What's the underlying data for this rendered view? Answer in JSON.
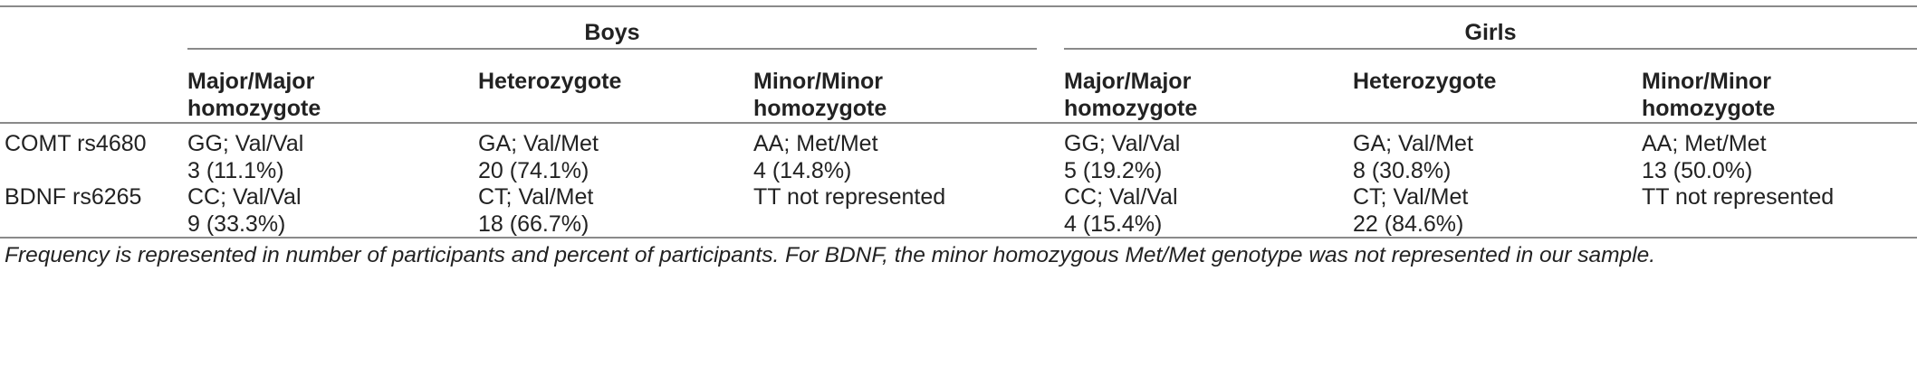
{
  "groups": {
    "boys": "Boys",
    "girls": "Girls"
  },
  "column_headers": {
    "major_major": "Major/Major\nhomozygote",
    "heterozygote": "Heterozygote",
    "minor_minor": "Minor/Minor\nhomozygote"
  },
  "rows": [
    {
      "label": "COMT rs4680",
      "boys": [
        {
          "genotype": "GG; Val/Val",
          "count": "3 (11.1%)"
        },
        {
          "genotype": "GA; Val/Met",
          "count": "20 (74.1%)"
        },
        {
          "genotype": "AA; Met/Met",
          "count": "4 (14.8%)"
        }
      ],
      "girls": [
        {
          "genotype": "GG; Val/Val",
          "count": "5 (19.2%)"
        },
        {
          "genotype": "GA; Val/Met",
          "count": "8 (30.8%)"
        },
        {
          "genotype": "AA; Met/Met",
          "count": "13 (50.0%)"
        }
      ]
    },
    {
      "label": "BDNF rs6265",
      "boys": [
        {
          "genotype": "CC; Val/Val",
          "count": "9 (33.3%)"
        },
        {
          "genotype": "CT; Val/Met",
          "count": "18 (66.7%)"
        },
        {
          "genotype": "TT not represented",
          "count": ""
        }
      ],
      "girls": [
        {
          "genotype": "CC; Val/Val",
          "count": "4 (15.4%)"
        },
        {
          "genotype": "CT; Val/Met",
          "count": "22 (84.6%)"
        },
        {
          "genotype": "TT not represented",
          "count": ""
        }
      ]
    }
  ],
  "footnote": "Frequency is represented in number of participants and percent of participants. For BDNF, the minor homozygous Met/Met genotype was not represented in our sample."
}
